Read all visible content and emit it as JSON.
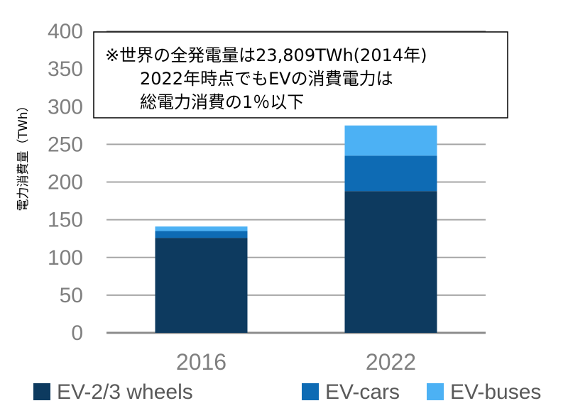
{
  "chart_data": {
    "type": "bar",
    "stacked": true,
    "categories": [
      "2016",
      "2022"
    ],
    "series": [
      {
        "name": "EV-2/3 wheels",
        "values": [
          126,
          188
        ],
        "color": "#0d3a5f"
      },
      {
        "name": "EV-cars",
        "values": [
          9,
          47
        ],
        "color": "#0e6bb4"
      },
      {
        "name": "EV-buses",
        "values": [
          6,
          40
        ],
        "color": "#4cb1f4"
      }
    ],
    "ylabel": "電力消費量（TWh）",
    "ylim": [
      0,
      400
    ],
    "yticks": [
      "0",
      "50",
      "100",
      "150",
      "200",
      "250",
      "300",
      "350",
      "400"
    ],
    "grid": true,
    "legend": "bottom",
    "annotation": [
      "※世界の全発電量は23,809TWh(2014年)",
      "2022年時点でもEVの消費電力は",
      "総電力消費の1％以下"
    ]
  }
}
